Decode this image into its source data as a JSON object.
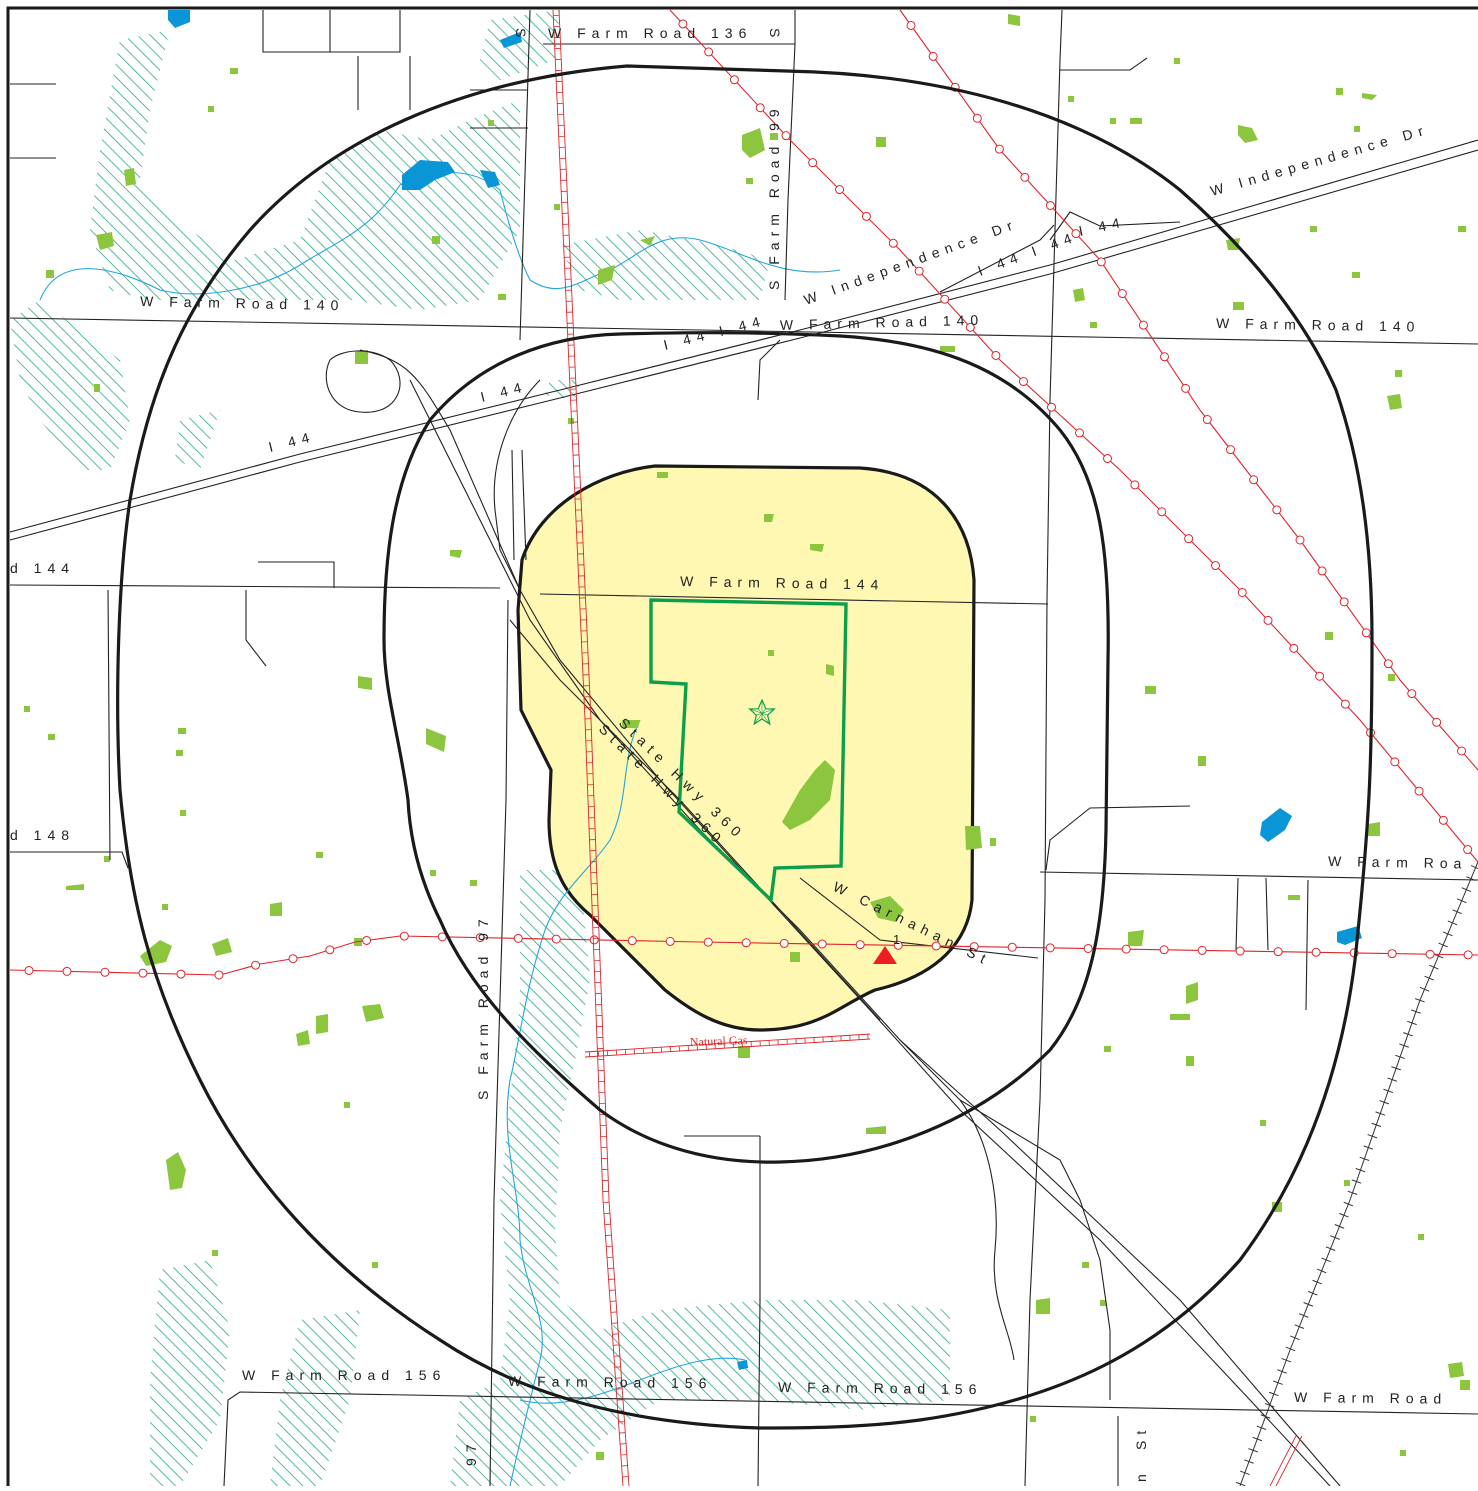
{
  "map": {
    "roads": {
      "fr136": "W Farm Road 136",
      "fr140_left": "W Farm Road 140",
      "fr140_mid": "W Farm Road 140",
      "fr140_right": "W Farm Road 140",
      "fr144_left": "d 144",
      "fr144_center": "W Farm Road 144",
      "fr148_left": "d 148",
      "fr148_right": "W Farm Roa",
      "fr156_a": "W Farm Road 156",
      "fr156_b": "W Farm Road 156",
      "fr156_c": "W Farm Road 156",
      "fr156_right": "W Farm Road",
      "sfr99": "S Farm Road 99",
      "sfr97": "S Farm Road 97",
      "sfr97_bottom": "97",
      "s_top": "S",
      "s_right": "S",
      "indep_top": "W Independence Dr",
      "indep_mid": "W Independence Dr",
      "i44_a": "I 44 I 44",
      "i44_b": "I 44",
      "i44_c": "I 44 I 44",
      "i44_d": "I 44",
      "i44_e": "I 44",
      "hwy360_a": "State Hwy 360",
      "hwy360_b": "State Hwy 360",
      "carnahan": "W Carnahan St",
      "st_bottom": "St",
      "n_bottom": "n"
    },
    "pipeline_label": "Natural Gas",
    "marker_label": "1",
    "colors": {
      "buffer_fill": "#fff8b3",
      "site_outline": "#0aa04b",
      "vegetation": "#8cc63f",
      "water": "#0a96d6",
      "pipeline": "#e0242a",
      "wetland_hatch": "#2aa889",
      "marker": "#ee1c25"
    },
    "icons": [
      "site-star-icon",
      "triangle-marker-icon"
    ]
  }
}
